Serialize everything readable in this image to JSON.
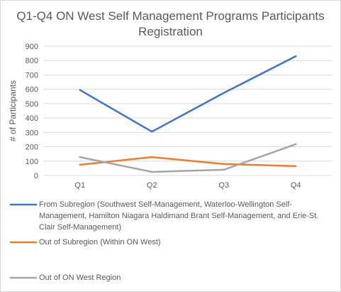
{
  "chart_data": {
    "type": "line",
    "title_line1": "Q1-Q4 ON West Self Management Programs Participants",
    "title_line2": "Registration",
    "xlabel": "",
    "ylabel": "# of Participants",
    "categories": [
      "Q1",
      "Q2",
      "Q3",
      "Q4"
    ],
    "ylim": [
      0,
      900
    ],
    "yticks": [
      "0",
      "100",
      "200",
      "300",
      "400",
      "500",
      "600",
      "700",
      "800",
      "900"
    ],
    "grid": true,
    "legend_position": "bottom",
    "series": [
      {
        "name": "From Subregion (Southwest Self-Management, Waterloo-Wellington Self-Management, Hamilton Niagara Haldimand Brant Self-Management, and Erie-St. Clair Self-Management)",
        "color": "#4472c4",
        "values": [
          595,
          305,
          575,
          830
        ]
      },
      {
        "name": "Out of Subregion (Within ON West)",
        "color": "#ed7d31",
        "values": [
          75,
          128,
          80,
          65
        ]
      },
      {
        "name": "Out of ON West Region",
        "color": "#a5a5a5",
        "values": [
          128,
          25,
          40,
          218
        ]
      }
    ]
  }
}
